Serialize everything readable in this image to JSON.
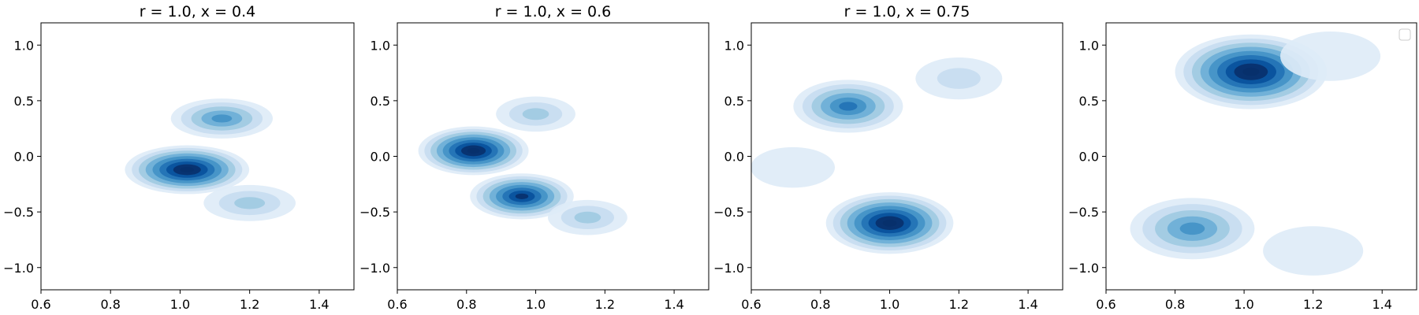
{
  "figure": {
    "background": "#ffffff",
    "colormap": "Blues",
    "colormap_stops": [
      "#f7fbff",
      "#deebf7",
      "#c6dbef",
      "#9ecae1",
      "#6baed6",
      "#4292c6",
      "#2171b5",
      "#08519c",
      "#08306b"
    ]
  },
  "chart_data": [
    {
      "type": "contour",
      "title": "r = 1.0, x = 0.4",
      "xlabel": "",
      "ylabel": "",
      "xlim": [
        0.6,
        1.5
      ],
      "ylim": [
        -1.2,
        1.2
      ],
      "xticks": [
        0.6,
        0.8,
        1.0,
        1.2,
        1.4
      ],
      "xtick_labels": [
        "0.6",
        "0.8",
        "1.0",
        "1.2",
        "1.4"
      ],
      "yticks": [
        -1.0,
        -0.5,
        0.0,
        0.5,
        1.0
      ],
      "ytick_labels": [
        "−1.0",
        "−0.5",
        "0.0",
        "0.5",
        "1.0"
      ],
      "grid": false,
      "legend": false,
      "density_levels": 9,
      "modes": [
        {
          "x": 1.02,
          "y": -0.12,
          "peak": 1.0
        },
        {
          "x": 1.12,
          "y": 0.34,
          "peak": 0.55
        },
        {
          "x": 1.2,
          "y": -0.42,
          "peak": 0.35
        }
      ],
      "support": {
        "x": [
          0.75,
          1.4
        ],
        "y": [
          -0.75,
          0.62
        ]
      }
    },
    {
      "type": "contour",
      "title": "r = 1.0, x = 0.6",
      "xlabel": "",
      "ylabel": "",
      "xlim": [
        0.6,
        1.5
      ],
      "ylim": [
        -1.2,
        1.2
      ],
      "xticks": [
        0.6,
        0.8,
        1.0,
        1.2,
        1.4
      ],
      "xtick_labels": [
        "0.6",
        "0.8",
        "1.0",
        "1.2",
        "1.4"
      ],
      "yticks": [
        -1.0,
        -0.5,
        0.0,
        0.5,
        1.0
      ],
      "ytick_labels": [
        "−1.0",
        "−0.5",
        "0.0",
        "0.5",
        "1.0"
      ],
      "grid": false,
      "legend": false,
      "density_levels": 9,
      "modes": [
        {
          "x": 0.82,
          "y": 0.05,
          "peak": 1.0
        },
        {
          "x": 0.96,
          "y": -0.36,
          "peak": 0.85
        },
        {
          "x": 1.15,
          "y": -0.55,
          "peak": 0.3
        },
        {
          "x": 1.0,
          "y": 0.38,
          "peak": 0.3
        }
      ],
      "support": {
        "x": [
          0.72,
          1.3
        ],
        "y": [
          -0.72,
          0.65
        ]
      }
    },
    {
      "type": "contour",
      "title": "r = 1.0, x = 0.75",
      "xlabel": "",
      "ylabel": "",
      "xlim": [
        0.6,
        1.5
      ],
      "ylim": [
        -1.2,
        1.2
      ],
      "xticks": [
        0.6,
        0.8,
        1.0,
        1.2,
        1.4
      ],
      "xtick_labels": [
        "0.6",
        "0.8",
        "1.0",
        "1.2",
        "1.4"
      ],
      "yticks": [
        -1.0,
        -0.5,
        0.0,
        0.5,
        1.0
      ],
      "ytick_labels": [
        "−1.0",
        "−0.5",
        "0.0",
        "0.5",
        "1.0"
      ],
      "grid": false,
      "legend": false,
      "density_levels": 9,
      "modes": [
        {
          "x": 1.0,
          "y": -0.6,
          "peak": 1.0
        },
        {
          "x": 0.88,
          "y": 0.45,
          "peak": 0.65
        },
        {
          "x": 1.2,
          "y": 0.7,
          "peak": 0.2
        },
        {
          "x": 0.72,
          "y": -0.1,
          "peak": 0.15
        }
      ],
      "support": {
        "x": [
          0.65,
          1.32
        ],
        "y": [
          -0.85,
          0.88
        ]
      }
    },
    {
      "type": "contour",
      "title": "",
      "xlabel": "",
      "ylabel": "",
      "xlim": [
        0.6,
        1.5
      ],
      "ylim": [
        -1.2,
        1.2
      ],
      "xticks": [
        0.6,
        0.8,
        1.0,
        1.2,
        1.4
      ],
      "xtick_labels": [
        "0.6",
        "0.8",
        "1.0",
        "1.2",
        "1.4"
      ],
      "yticks": [
        -1.0,
        -0.5,
        0.0,
        0.5,
        1.0
      ],
      "ytick_labels": [
        "−1.0",
        "−0.5",
        "0.0",
        "0.5",
        "1.0"
      ],
      "grid": false,
      "legend": true,
      "legend_position": "top-right",
      "legend_entries": [],
      "density_levels": 9,
      "modes": [
        {
          "x": 1.02,
          "y": 0.76,
          "peak": 1.0
        },
        {
          "x": 0.85,
          "y": -0.65,
          "peak": 0.55
        },
        {
          "x": 1.25,
          "y": 0.9,
          "peak": 0.15
        },
        {
          "x": 1.2,
          "y": -0.85,
          "peak": 0.15
        }
      ],
      "support": {
        "x": [
          0.62,
          1.42
        ],
        "y": [
          -1.02,
          1.08
        ]
      }
    }
  ]
}
